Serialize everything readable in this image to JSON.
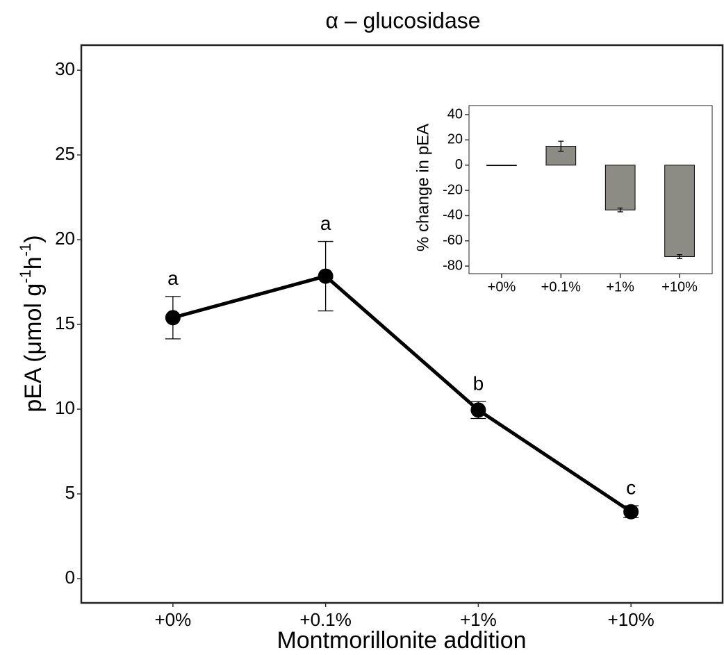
{
  "chart_data": [
    {
      "type": "line",
      "title": "α – glucosidase",
      "x_label": "Montmorillonite addition",
      "y_label": {
        "start": "pEA (μmol g",
        "sup1": "-1",
        "mid": "h",
        "sup2": "-1",
        "end": ")"
      },
      "categories": [
        "+0%",
        "+0.1%",
        "+1%",
        "+10%"
      ],
      "values": [
        15.4,
        17.85,
        9.95,
        3.95
      ],
      "errors": [
        1.25,
        2.05,
        0.5,
        0.35
      ],
      "annotations": [
        "a",
        "a",
        "b",
        "c"
      ],
      "color": "#000000",
      "ylim": [
        -1.43,
        31.48
      ],
      "yticks": [
        0,
        5,
        10,
        15,
        20,
        25,
        30
      ]
    },
    {
      "type": "bar",
      "y_label": "% change in pEA",
      "categories": [
        "+0%",
        "+0.1%",
        "+1%",
        "+10%"
      ],
      "values": [
        0,
        15,
        -35.5,
        -72.5
      ],
      "errors": [
        0,
        4,
        1.5,
        1.5
      ],
      "color": "#8c8c84",
      "ylim": [
        -86,
        47.2
      ],
      "yticks": [
        40,
        20,
        0,
        -20,
        -40,
        -60,
        -80
      ]
    }
  ]
}
